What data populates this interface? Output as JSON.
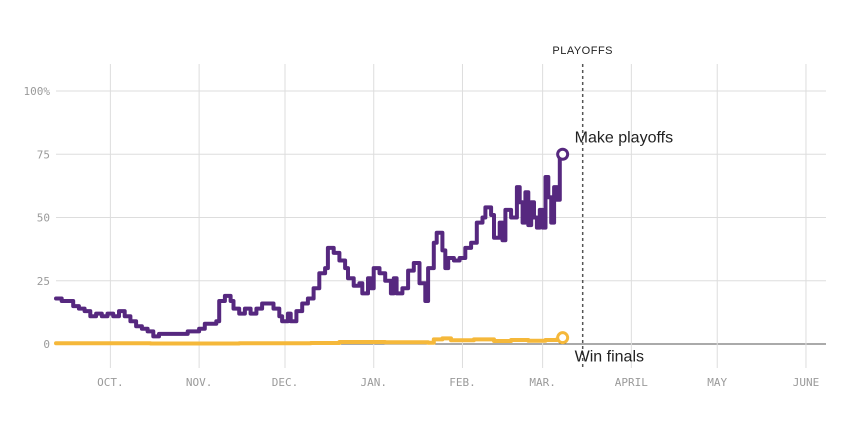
{
  "chart_data": {
    "type": "line",
    "y_ticks": [
      {
        "value": 100,
        "label": "100%"
      },
      {
        "value": 75,
        "label": "75"
      },
      {
        "value": 50,
        "label": "50"
      },
      {
        "value": 25,
        "label": "25"
      },
      {
        "value": 0,
        "label": "0"
      }
    ],
    "x_ticks": [
      {
        "date": "2017-10-01",
        "label": "OCT."
      },
      {
        "date": "2017-11-01",
        "label": "NOV."
      },
      {
        "date": "2017-12-01",
        "label": "DEC."
      },
      {
        "date": "2018-01-01",
        "label": "JAN."
      },
      {
        "date": "2018-02-01",
        "label": "FEB."
      },
      {
        "date": "2018-03-01",
        "label": "MAR."
      },
      {
        "date": "2018-04-01",
        "label": "APRIL"
      },
      {
        "date": "2018-05-01",
        "label": "MAY"
      },
      {
        "date": "2018-06-01",
        "label": "JUNE"
      }
    ],
    "x_range": [
      "2017-09-12",
      "2018-06-08"
    ],
    "ylim": [
      0,
      100
    ],
    "grid": true,
    "annotation": {
      "label": "PLAYOFFS",
      "date": "2018-03-15"
    },
    "series": [
      {
        "name": "Make playoffs",
        "color": "#56287f",
        "points": [
          [
            "2017-09-12",
            18
          ],
          [
            "2017-09-14",
            17
          ],
          [
            "2017-09-16",
            17
          ],
          [
            "2017-09-18",
            15
          ],
          [
            "2017-09-20",
            14
          ],
          [
            "2017-09-22",
            13
          ],
          [
            "2017-09-24",
            11
          ],
          [
            "2017-09-26",
            12
          ],
          [
            "2017-09-28",
            11
          ],
          [
            "2017-09-30",
            12
          ],
          [
            "2017-10-02",
            11
          ],
          [
            "2017-10-04",
            13
          ],
          [
            "2017-10-06",
            11
          ],
          [
            "2017-10-08",
            9
          ],
          [
            "2017-10-10",
            7
          ],
          [
            "2017-10-12",
            6
          ],
          [
            "2017-10-14",
            5
          ],
          [
            "2017-10-16",
            3
          ],
          [
            "2017-10-18",
            4
          ],
          [
            "2017-10-20",
            4
          ],
          [
            "2017-10-23",
            4
          ],
          [
            "2017-10-26",
            4
          ],
          [
            "2017-10-28",
            5
          ],
          [
            "2017-10-30",
            5
          ],
          [
            "2017-11-01",
            6
          ],
          [
            "2017-11-03",
            8
          ],
          [
            "2017-11-05",
            8
          ],
          [
            "2017-11-07",
            9
          ],
          [
            "2017-11-08",
            17
          ],
          [
            "2017-11-10",
            19
          ],
          [
            "2017-11-12",
            17
          ],
          [
            "2017-11-13",
            14
          ],
          [
            "2017-11-15",
            12
          ],
          [
            "2017-11-17",
            14
          ],
          [
            "2017-11-19",
            12
          ],
          [
            "2017-11-21",
            14
          ],
          [
            "2017-11-23",
            16
          ],
          [
            "2017-11-25",
            16
          ],
          [
            "2017-11-27",
            14
          ],
          [
            "2017-11-29",
            11
          ],
          [
            "2017-11-30",
            9
          ],
          [
            "2017-12-02",
            12
          ],
          [
            "2017-12-03",
            9
          ],
          [
            "2017-12-05",
            13
          ],
          [
            "2017-12-07",
            16
          ],
          [
            "2017-12-09",
            18
          ],
          [
            "2017-12-11",
            22
          ],
          [
            "2017-12-13",
            28
          ],
          [
            "2017-12-15",
            30
          ],
          [
            "2017-12-16",
            38
          ],
          [
            "2017-12-18",
            36
          ],
          [
            "2017-12-20",
            33
          ],
          [
            "2017-12-22",
            30
          ],
          [
            "2017-12-23",
            26
          ],
          [
            "2017-12-25",
            23
          ],
          [
            "2017-12-27",
            24
          ],
          [
            "2017-12-28",
            20
          ],
          [
            "2017-12-30",
            26
          ],
          [
            "2017-12-31",
            22
          ],
          [
            "2018-01-01",
            30
          ],
          [
            "2018-01-03",
            28
          ],
          [
            "2018-01-05",
            25
          ],
          [
            "2018-01-07",
            20
          ],
          [
            "2018-01-08",
            26
          ],
          [
            "2018-01-09",
            20
          ],
          [
            "2018-01-11",
            22
          ],
          [
            "2018-01-13",
            29
          ],
          [
            "2018-01-15",
            32
          ],
          [
            "2018-01-17",
            24
          ],
          [
            "2018-01-19",
            17
          ],
          [
            "2018-01-20",
            30
          ],
          [
            "2018-01-22",
            40
          ],
          [
            "2018-01-23",
            44
          ],
          [
            "2018-01-25",
            37
          ],
          [
            "2018-01-26",
            30
          ],
          [
            "2018-01-27",
            34
          ],
          [
            "2018-01-29",
            33
          ],
          [
            "2018-01-31",
            34
          ],
          [
            "2018-02-02",
            38
          ],
          [
            "2018-02-04",
            40
          ],
          [
            "2018-02-06",
            48
          ],
          [
            "2018-02-08",
            50
          ],
          [
            "2018-02-09",
            54
          ],
          [
            "2018-02-11",
            51
          ],
          [
            "2018-02-12",
            42
          ],
          [
            "2018-02-14",
            48
          ],
          [
            "2018-02-15",
            41
          ],
          [
            "2018-02-16",
            53
          ],
          [
            "2018-02-18",
            50
          ],
          [
            "2018-02-20",
            62
          ],
          [
            "2018-02-21",
            56
          ],
          [
            "2018-02-22",
            48
          ],
          [
            "2018-02-23",
            60
          ],
          [
            "2018-02-24",
            47
          ],
          [
            "2018-02-25",
            56
          ],
          [
            "2018-02-26",
            50
          ],
          [
            "2018-02-27",
            46
          ],
          [
            "2018-02-28",
            53
          ],
          [
            "2018-03-01",
            46
          ],
          [
            "2018-03-02",
            66
          ],
          [
            "2018-03-03",
            58
          ],
          [
            "2018-03-04",
            48
          ],
          [
            "2018-03-05",
            62
          ],
          [
            "2018-03-06",
            57
          ],
          [
            "2018-03-07",
            75
          ],
          [
            "2018-03-08",
            75
          ]
        ]
      },
      {
        "name": "Win finals",
        "color": "#f5b83a",
        "points": [
          [
            "2017-09-12",
            0.3
          ],
          [
            "2017-10-15",
            0.2
          ],
          [
            "2017-11-15",
            0.3
          ],
          [
            "2017-12-10",
            0.4
          ],
          [
            "2017-12-20",
            0.8
          ],
          [
            "2018-01-05",
            0.7
          ],
          [
            "2018-01-20",
            0.5
          ],
          [
            "2018-01-22",
            1.8
          ],
          [
            "2018-01-25",
            2.2
          ],
          [
            "2018-01-28",
            1.5
          ],
          [
            "2018-02-05",
            1.8
          ],
          [
            "2018-02-12",
            1.2
          ],
          [
            "2018-02-18",
            1.6
          ],
          [
            "2018-02-24",
            1.3
          ],
          [
            "2018-03-02",
            1.6
          ],
          [
            "2018-03-06",
            1.8
          ],
          [
            "2018-03-08",
            2.5
          ]
        ]
      }
    ]
  }
}
